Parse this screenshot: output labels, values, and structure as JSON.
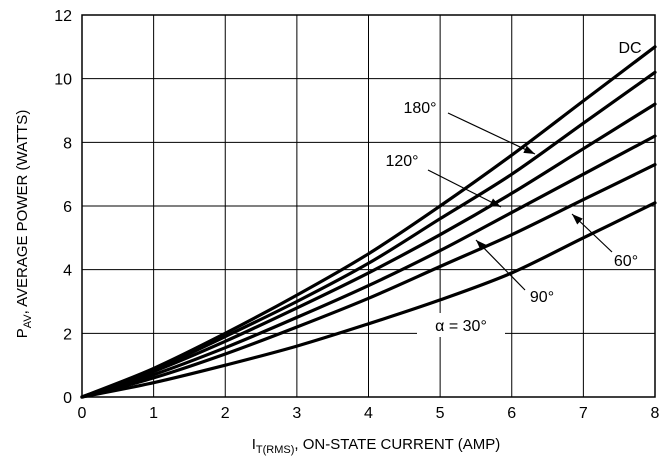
{
  "chart_data": {
    "type": "line",
    "xlabel": {
      "main": "I",
      "sub": "T(RMS)",
      "rest": ", ON-STATE CURRENT (AMP)"
    },
    "ylabel": {
      "main": "P",
      "sub": "AV",
      "rest": ", AVERAGE POWER (WATTS)"
    },
    "xlim": [
      0,
      8
    ],
    "ylim": [
      0,
      12
    ],
    "xticks": [
      "0",
      "1",
      "2",
      "3",
      "4",
      "5",
      "6",
      "7",
      "8"
    ],
    "yticks": [
      "0",
      "2",
      "4",
      "6",
      "8",
      "10",
      "12"
    ],
    "grid": true,
    "x": [
      0,
      1,
      2,
      3,
      4,
      5,
      6,
      7,
      8
    ],
    "series": [
      {
        "name": "DC",
        "values": [
          0,
          0.9,
          2.0,
          3.2,
          4.5,
          6.0,
          7.6,
          9.3,
          11.0
        ]
      },
      {
        "name": "180°",
        "values": [
          0,
          0.85,
          1.9,
          3.0,
          4.2,
          5.6,
          7.0,
          8.6,
          10.2
        ]
      },
      {
        "name": "120°",
        "values": [
          0,
          0.8,
          1.75,
          2.8,
          3.9,
          5.1,
          6.4,
          7.8,
          9.2
        ]
      },
      {
        "name": "90°",
        "values": [
          0,
          0.7,
          1.55,
          2.5,
          3.5,
          4.6,
          5.8,
          7.0,
          8.2
        ]
      },
      {
        "name": "60°",
        "values": [
          0,
          0.6,
          1.35,
          2.2,
          3.1,
          4.1,
          5.1,
          6.2,
          7.3
        ]
      },
      {
        "name": "30°",
        "values": [
          0,
          0.45,
          1.0,
          1.6,
          2.3,
          3.05,
          3.9,
          5.0,
          6.1
        ]
      }
    ],
    "annotations": [
      {
        "label": "DC"
      },
      {
        "label": "180°"
      },
      {
        "label": "120°"
      },
      {
        "label": "90°"
      },
      {
        "label": "60°"
      },
      {
        "label": "α = 30°"
      }
    ]
  }
}
